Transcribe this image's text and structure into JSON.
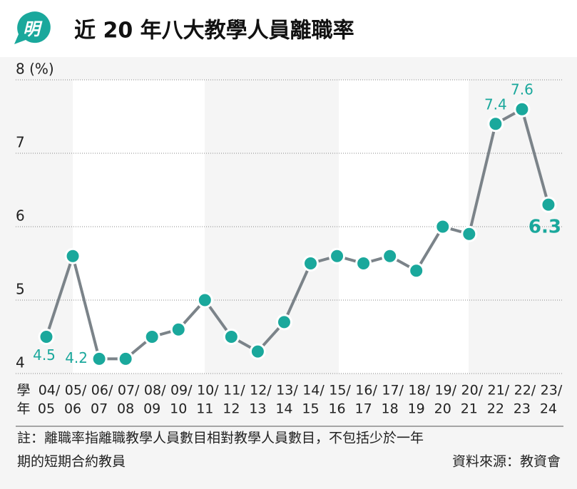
{
  "logo": "明",
  "chart_data": {
    "type": "line",
    "title": "近 20 年八大教學人員離職率",
    "xlabel": [
      "學",
      "年"
    ],
    "categories": [
      [
        "04/",
        "05"
      ],
      [
        "05/",
        "06"
      ],
      [
        "06/",
        "07"
      ],
      [
        "07/",
        "08"
      ],
      [
        "08/",
        "09"
      ],
      [
        "09/",
        "10"
      ],
      [
        "10/",
        "11"
      ],
      [
        "11/",
        "12"
      ],
      [
        "12/",
        "13"
      ],
      [
        "13/",
        "14"
      ],
      [
        "14/",
        "15"
      ],
      [
        "15/",
        "16"
      ],
      [
        "16/",
        "17"
      ],
      [
        "17/",
        "18"
      ],
      [
        "18/",
        "19"
      ],
      [
        "19/",
        "20"
      ],
      [
        "20/",
        "21"
      ],
      [
        "21/",
        "22"
      ],
      [
        "22/",
        "23"
      ],
      [
        "23/",
        "24"
      ]
    ],
    "series": [
      {
        "name": "離職率",
        "color": "#1aa89c",
        "line_color": "#7b8389",
        "values": [
          4.5,
          5.6,
          4.2,
          4.2,
          4.5,
          4.6,
          5.0,
          4.5,
          4.3,
          4.7,
          5.5,
          5.6,
          5.5,
          5.6,
          5.4,
          6.0,
          5.9,
          7.4,
          7.6,
          6.3
        ]
      }
    ],
    "labeled_points": [
      0,
      2,
      17,
      18,
      19
    ],
    "ylim": [
      4,
      8
    ],
    "yticks": [
      4,
      5,
      6,
      7,
      {
        "value": 8,
        "label": "8 (%)"
      }
    ],
    "grid": true,
    "note": [
      "註：離職率指離職教學人員數目相對教學人員數目，不包括少於一年",
      "期的短期合約教員"
    ],
    "source": "資料來源：教資會"
  }
}
